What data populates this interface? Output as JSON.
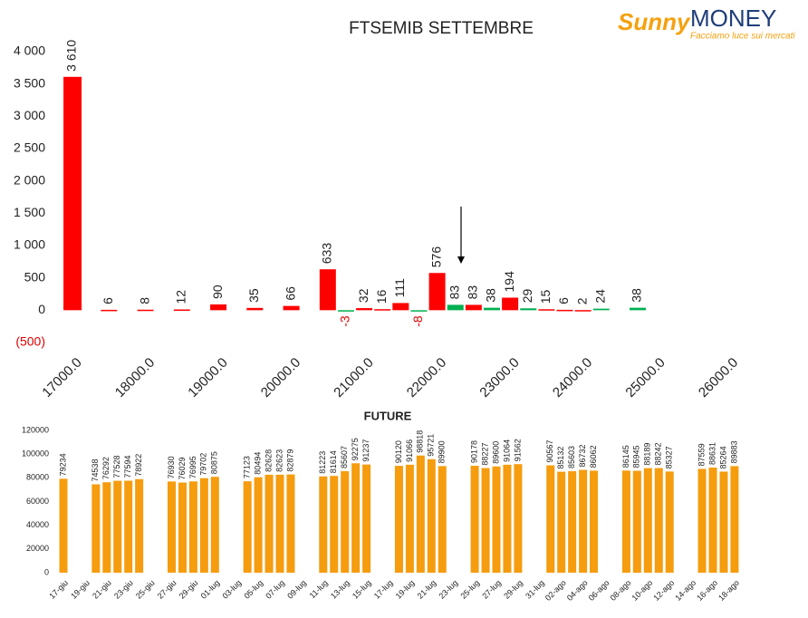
{
  "logo": {
    "brand": "Sunny",
    "name": "MONEY",
    "tagline": "Facciamo luce sui mercati"
  },
  "chart_data": [
    {
      "type": "bar",
      "title": "FTSEMIB SETTEMBRE",
      "x": [
        17000,
        17500,
        18000,
        18500,
        19000,
        19500,
        20000,
        20500,
        20750,
        21000,
        21250,
        21500,
        21750,
        22000,
        22250,
        22500,
        22750,
        23000,
        23250,
        23500,
        23750,
        24000,
        24250,
        24750
      ],
      "values": [
        3610,
        6,
        8,
        12,
        90,
        35,
        66,
        633,
        -3,
        32,
        16,
        111,
        -8,
        576,
        83,
        83,
        38,
        194,
        29,
        15,
        6,
        2,
        24,
        38
      ],
      "value_labels": [
        "3 610",
        "6",
        "8",
        "12",
        "90",
        "35",
        "66",
        "633",
        "-3",
        "32",
        "16",
        "111",
        "-8",
        "576",
        "83",
        "83",
        "38",
        "194",
        "29",
        "15",
        "6",
        "2",
        "24",
        "38"
      ],
      "colors": [
        "#ff0000",
        "#ff0000",
        "#ff0000",
        "#ff0000",
        "#ff0000",
        "#ff0000",
        "#ff0000",
        "#ff0000",
        "#00b050",
        "#ff0000",
        "#ff0000",
        "#ff0000",
        "#00b050",
        "#ff0000",
        "#00b050",
        "#ff0000",
        "#00b050",
        "#ff0000",
        "#00b050",
        "#ff0000",
        "#ff0000",
        "#ff0000",
        "#00b050",
        "#00b050"
      ],
      "xlim": [
        16900,
        26700
      ],
      "xticks": [
        {
          "value": 17000,
          "label": "17000.0"
        },
        {
          "value": 18000,
          "label": "18000.0"
        },
        {
          "value": 19000,
          "label": "19000.0"
        },
        {
          "value": 20000,
          "label": "20000.0"
        },
        {
          "value": 21000,
          "label": "21000.0"
        },
        {
          "value": 22000,
          "label": "22000.0"
        },
        {
          "value": 23000,
          "label": "23000.0"
        },
        {
          "value": 24000,
          "label": "24000.0"
        },
        {
          "value": 25000,
          "label": "25000.0"
        },
        {
          "value": 26000,
          "label": "26000.0"
        }
      ],
      "ylim": [
        -500,
        4000
      ],
      "yticks": [
        {
          "value": -500,
          "label": "(500)"
        },
        0,
        500,
        {
          "value": 1000,
          "label": "1 000"
        },
        {
          "value": 1500,
          "label": "1 500"
        },
        {
          "value": 2000,
          "label": "2 000"
        },
        {
          "value": 2500,
          "label": "2 500"
        },
        {
          "value": 3000,
          "label": "3 000"
        },
        {
          "value": 3500,
          "label": "3 500"
        },
        {
          "value": 4000,
          "label": "4 000"
        }
      ],
      "grid": false
    },
    {
      "type": "bar",
      "title": "FUTURE",
      "color": "#f59c0f",
      "categories": [
        "17-giu",
        null,
        "19-giu",
        null,
        "21-giu",
        null,
        "23-giu",
        null,
        "25-giu",
        null,
        "27-giu",
        null,
        "29-giu",
        null,
        "01-lug",
        null,
        "03-lug",
        null,
        "05-lug",
        null,
        "07-lug",
        null,
        "09-lug",
        null,
        "11-lug",
        null,
        "13-lug",
        null,
        "15-lug",
        null,
        "17-lug",
        null,
        "19-lug",
        null,
        "21-lug",
        null,
        "23-lug",
        null,
        "25-lug",
        null,
        "27-lug",
        null,
        "29-lug",
        null,
        "31-lug",
        null,
        "02-ago",
        null,
        "04-ago",
        null,
        "06-ago",
        null,
        "08-ago",
        null,
        "10-ago",
        null,
        "12-ago",
        null,
        "14-ago",
        null,
        "16-ago",
        null,
        "18-ago",
        null
      ],
      "values": [
        79234,
        null,
        null,
        74538,
        76292,
        77528,
        77594,
        78922,
        null,
        null,
        76930,
        76029,
        76995,
        79702,
        80875,
        null,
        null,
        77123,
        80494,
        82628,
        82623,
        82879,
        null,
        null,
        81223,
        81614,
        85607,
        92275,
        91237,
        null,
        null,
        90120,
        91066,
        98818,
        95721,
        89900,
        null,
        null,
        90178,
        88227,
        89600,
        91064,
        91562,
        null,
        null,
        90567,
        85132,
        85603,
        86732,
        86062,
        null,
        null,
        86145,
        85945,
        88189,
        88242,
        85327,
        null,
        null,
        87559,
        88631,
        85264,
        89883,
        null
      ],
      "ylim": [
        0,
        120000
      ],
      "yticks": [
        0,
        20000,
        40000,
        60000,
        80000,
        100000,
        120000
      ],
      "grid": false
    }
  ]
}
